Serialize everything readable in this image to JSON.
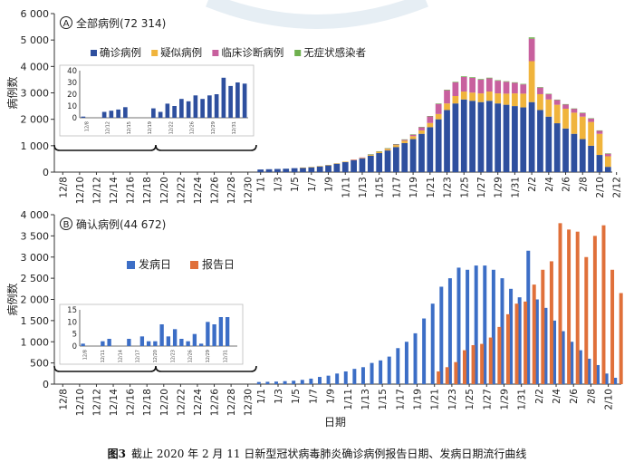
{
  "caption": {
    "label": "图3",
    "text": "截止 2020 年 2 月 11 日新型冠状病毒肺炎确诊病例报告日期、发病日期流行曲线"
  },
  "chart_data": [
    {
      "type": "bar",
      "stacked": true,
      "panel_letter": "A",
      "title": "全部病例(72 314)",
      "xlabel": "",
      "ylabel": "病例数",
      "ylim": [
        0,
        6000
      ],
      "yticks": [
        "0",
        "1 000",
        "2 000",
        "3 000",
        "4 000",
        "5 000",
        "6 000"
      ],
      "dates_label_part1": [
        "12/8",
        "12/10",
        "12/12",
        "12/14",
        "12/16",
        "12/18",
        "12/20",
        "12/22",
        "12/24",
        "12/26",
        "12/28",
        "12/30"
      ],
      "dates_label_part2": [
        "1/1",
        "1/3",
        "1/5",
        "1/7",
        "1/9",
        "1/11",
        "1/13",
        "1/15",
        "1/17",
        "1/19",
        "1/21",
        "1/23",
        "1/25",
        "1/27",
        "1/29",
        "1/31",
        "2/2",
        "2/4",
        "2/6",
        "2/8",
        "2/10",
        "2/12"
      ],
      "legend_position": "top-left",
      "colors": [
        "#2e4f9e",
        "#f0b43c",
        "#c8609e",
        "#6fb04f"
      ],
      "categories": [
        "1/1",
        "1/2",
        "1/3",
        "1/4",
        "1/5",
        "1/6",
        "1/7",
        "1/8",
        "1/9",
        "1/10",
        "1/11",
        "1/12",
        "1/13",
        "1/14",
        "1/15",
        "1/16",
        "1/17",
        "1/18",
        "1/19",
        "1/20",
        "1/21",
        "1/22",
        "1/23",
        "1/24",
        "1/25",
        "1/26",
        "1/27",
        "1/28",
        "1/29",
        "1/30",
        "1/31",
        "2/1",
        "2/2",
        "2/3",
        "2/4",
        "2/5",
        "2/6",
        "2/7",
        "2/8",
        "2/9",
        "2/10",
        "2/11"
      ],
      "series": [
        {
          "name": "确诊病例",
          "values": [
            100,
            110,
            120,
            130,
            150,
            170,
            190,
            220,
            260,
            320,
            380,
            450,
            520,
            620,
            720,
            820,
            950,
            1100,
            1250,
            1450,
            1700,
            2000,
            2350,
            2600,
            2750,
            2700,
            2650,
            2700,
            2600,
            2550,
            2500,
            2450,
            2650,
            2350,
            2100,
            1850,
            1650,
            1450,
            1250,
            1000,
            650,
            200
          ]
        },
        {
          "name": "疑似病例",
          "values": [
            0,
            0,
            0,
            0,
            0,
            5,
            5,
            10,
            10,
            15,
            20,
            25,
            30,
            40,
            50,
            60,
            75,
            90,
            110,
            130,
            160,
            200,
            250,
            280,
            300,
            310,
            330,
            350,
            380,
            420,
            480,
            520,
            1550,
            600,
            650,
            700,
            750,
            800,
            850,
            900,
            800,
            400
          ]
        },
        {
          "name": "临床诊断病例",
          "values": [
            0,
            0,
            0,
            0,
            0,
            0,
            0,
            0,
            0,
            0,
            0,
            5,
            5,
            10,
            15,
            20,
            30,
            40,
            60,
            120,
            250,
            380,
            500,
            520,
            550,
            560,
            520,
            500,
            480,
            450,
            400,
            350,
            850,
            250,
            200,
            180,
            160,
            150,
            140,
            130,
            120,
            100
          ]
        },
        {
          "name": "无症状感染者",
          "values": [
            0,
            0,
            0,
            0,
            0,
            0,
            0,
            0,
            0,
            0,
            0,
            0,
            0,
            5,
            5,
            5,
            5,
            10,
            10,
            10,
            15,
            20,
            20,
            20,
            25,
            25,
            25,
            25,
            20,
            20,
            20,
            20,
            50,
            20,
            15,
            15,
            15,
            10,
            10,
            10,
            10,
            10
          ]
        }
      ],
      "inset": {
        "ylim": [
          0,
          40
        ],
        "yticks": [
          "0",
          "10",
          "20",
          "30",
          "40"
        ],
        "categories": [
          "12/8",
          "12/9",
          "12/10",
          "12/11",
          "12/12",
          "12/13",
          "12/14",
          "12/15",
          "12/16",
          "12/17",
          "12/18",
          "12/19",
          "12/20",
          "12/21",
          "12/22",
          "12/23",
          "12/24",
          "12/25",
          "12/26",
          "12/27",
          "12/28",
          "12/29",
          "12/30",
          "12/31"
        ],
        "tick_labels": [
          "12/8",
          "12/12",
          "12/15",
          "12/19",
          "12/22",
          "12/26",
          "12/29",
          "12/31"
        ],
        "values": [
          1,
          0,
          0,
          5,
          6,
          7,
          9,
          0,
          0,
          0,
          8,
          5,
          12,
          10,
          16,
          14,
          19,
          16,
          19,
          20,
          34,
          27,
          30,
          29
        ]
      }
    },
    {
      "type": "bar",
      "panel_letter": "B",
      "title": "确认病例(44 672)",
      "xlabel": "日期",
      "ylabel": "病例数",
      "ylim": [
        0,
        4000
      ],
      "yticks": [
        "0",
        "500",
        "1 000",
        "1 500",
        "2 000",
        "2 500",
        "3 000",
        "3 500",
        "4 000"
      ],
      "dates_label_part1": [
        "12/8",
        "12/10",
        "12/12",
        "12/14",
        "12/16",
        "12/18",
        "12/20",
        "12/22",
        "12/24",
        "12/26",
        "12/28",
        "12/30"
      ],
      "dates_label_part2": [
        "1/1",
        "1/3",
        "1/5",
        "1/7",
        "1/9",
        "1/11",
        "1/13",
        "1/15",
        "1/17",
        "1/19",
        "1/21",
        "1/23",
        "1/25",
        "1/27",
        "1/29",
        "1/31",
        "2/2",
        "2/4",
        "2/6",
        "2/8",
        "2/10"
      ],
      "legend_position": "top-center",
      "colors": [
        "#3c6ec6",
        "#e0703a"
      ],
      "categories": [
        "1/1",
        "1/2",
        "1/3",
        "1/4",
        "1/5",
        "1/6",
        "1/7",
        "1/8",
        "1/9",
        "1/10",
        "1/11",
        "1/12",
        "1/13",
        "1/14",
        "1/15",
        "1/16",
        "1/17",
        "1/18",
        "1/19",
        "1/20",
        "1/21",
        "1/22",
        "1/23",
        "1/24",
        "1/25",
        "1/26",
        "1/27",
        "1/28",
        "1/29",
        "1/30",
        "1/31",
        "2/1",
        "2/2",
        "2/3",
        "2/4",
        "2/5",
        "2/6",
        "2/7",
        "2/8",
        "2/9",
        "2/10",
        "2/11"
      ],
      "series": [
        {
          "name": "发病日",
          "values": [
            50,
            55,
            60,
            70,
            80,
            100,
            130,
            170,
            200,
            250,
            300,
            360,
            400,
            500,
            560,
            650,
            850,
            1000,
            1200,
            1550,
            1900,
            2300,
            2500,
            2750,
            2700,
            2800,
            2800,
            2700,
            2500,
            2250,
            2050,
            3150,
            2000,
            1800,
            1500,
            1250,
            1000,
            800,
            600,
            450,
            250,
            150
          ]
        },
        {
          "name": "报告日",
          "values": [
            0,
            0,
            0,
            0,
            0,
            0,
            0,
            0,
            0,
            0,
            0,
            0,
            0,
            0,
            0,
            0,
            0,
            0,
            0,
            0,
            300,
            400,
            520,
            800,
            920,
            950,
            1100,
            1350,
            1650,
            1900,
            1950,
            2350,
            2700,
            2900,
            3800,
            3650,
            3600,
            3000,
            3500,
            3750,
            2700,
            2150
          ]
        }
      ],
      "inset": {
        "ylim": [
          0,
          15
        ],
        "yticks": [
          "0",
          "5",
          "10",
          "15"
        ],
        "categories": [
          "12/8",
          "12/9",
          "12/10",
          "12/11",
          "12/12",
          "12/13",
          "12/14",
          "12/15",
          "12/16",
          "12/17",
          "12/18",
          "12/19",
          "12/20",
          "12/21",
          "12/22",
          "12/23",
          "12/24",
          "12/25",
          "12/26",
          "12/27",
          "12/28",
          "12/29",
          "12/30",
          "12/31"
        ],
        "tick_labels": [
          "12/8",
          "12/11",
          "12/14",
          "12/17",
          "12/20",
          "12/23",
          "12/26",
          "12/29",
          "12/31"
        ],
        "values": [
          1,
          0,
          0,
          2,
          3,
          0,
          0,
          3,
          0,
          4,
          2,
          2,
          9,
          4,
          7,
          3,
          2,
          5,
          1,
          10,
          9,
          12,
          12,
          0
        ]
      }
    }
  ]
}
